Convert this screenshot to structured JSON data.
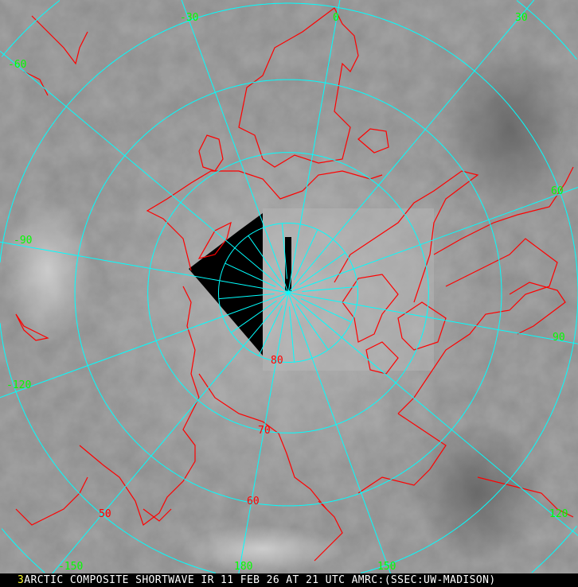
{
  "caption": {
    "frame_number": "3",
    "text": "ARCTIC COMPOSITE SHORTWAVE IR 11 FEB 26 AT 21 UTC AMRC:(SSEC:UW-MADISON)"
  },
  "map": {
    "projection": "polar stereographic (north)",
    "colors": {
      "grid": "#00ffff",
      "coastline": "#ff0000",
      "longitude_label": "#00ff00",
      "latitude_label": "#ff0000",
      "frame_number": "#ffff33",
      "caption_text": "#ffffff"
    },
    "latitude_labels": [
      {
        "text": "80",
        "lat": 80
      },
      {
        "text": "70",
        "lat": 70
      },
      {
        "text": "60",
        "lat": 60
      },
      {
        "text": "50",
        "lat": 50
      }
    ],
    "longitude_labels": [
      {
        "text": "0",
        "lon": 0
      },
      {
        "text": "30",
        "lon": 30
      },
      {
        "text": "60",
        "lon": 60
      },
      {
        "text": "90",
        "lon": 90
      },
      {
        "text": "120",
        "lon": 120
      },
      {
        "text": "150",
        "lon": 150
      },
      {
        "text": "180",
        "lon": 180
      },
      {
        "text": "-150",
        "lon": -150
      },
      {
        "text": "-120",
        "lon": -120
      },
      {
        "text": "-90",
        "lon": -90
      },
      {
        "text": "-60",
        "lon": -60
      },
      {
        "text": "-30",
        "lon": -30
      }
    ]
  }
}
